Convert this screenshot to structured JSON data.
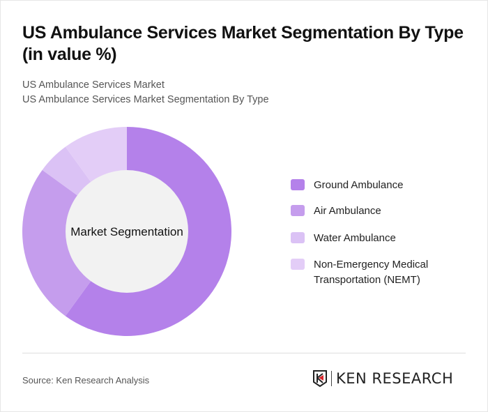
{
  "header": {
    "title": "US Ambulance Services Market Segmentation By Type (in value %)",
    "subtitle1": "US Ambulance Services Market",
    "subtitle2": "US Ambulance Services Market Segmentation By Type"
  },
  "chart_data": {
    "type": "pie",
    "variant": "donut",
    "center_label": "Market Segmentation",
    "categories": [
      "Ground Ambulance",
      "Air Ambulance",
      "Water Ambulance",
      "Non-Emergency Medical Transportation (NEMT)"
    ],
    "values": [
      60,
      25,
      5,
      10
    ],
    "colors": [
      "#b481ea",
      "#c59ded",
      "#dbc2f5",
      "#e3cdf7"
    ],
    "legend_position": "right"
  },
  "footer": {
    "source": "Source: Ken Research Analysis",
    "logo_text": "KEN RESEARCH"
  }
}
